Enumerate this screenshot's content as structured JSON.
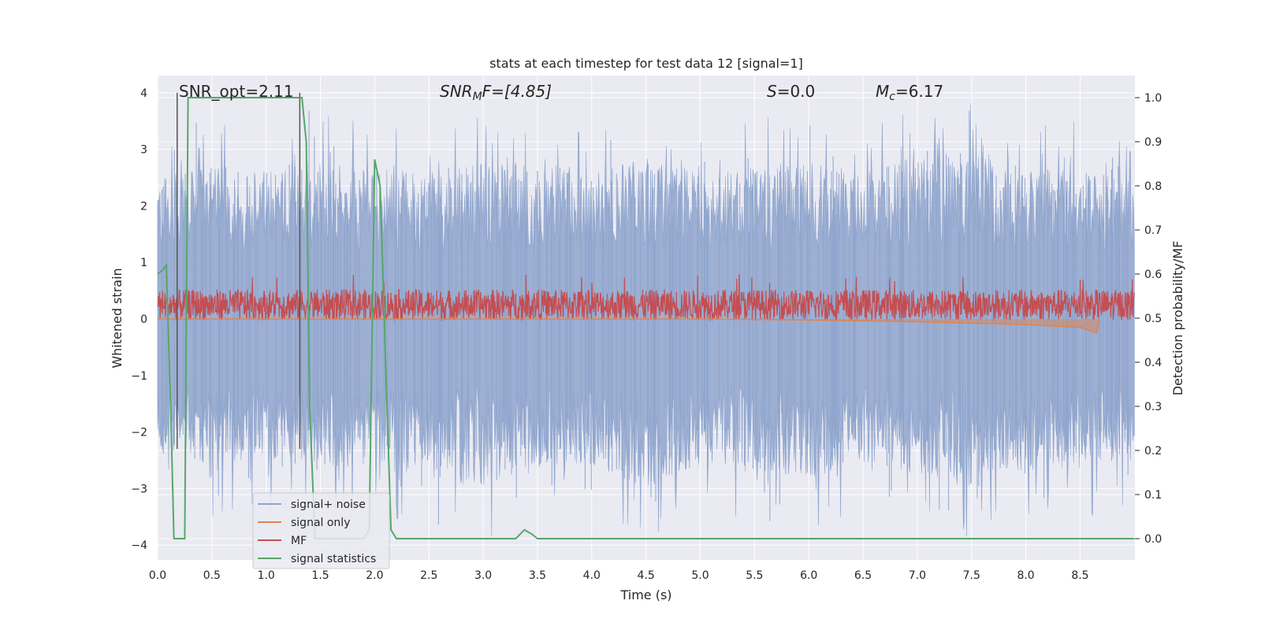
{
  "chart_data": {
    "type": "line",
    "title": "stats at each timestep for test data 12 [signal=1]",
    "xlabel": "Time (s)",
    "ylabel_left": "Whitened strain",
    "ylabel_right": "Detection probability/MF",
    "xlim": [
      0.0,
      9.0
    ],
    "ylim_left": [
      -4.2,
      4.4
    ],
    "ylim_right": [
      -0.05,
      1.05
    ],
    "grid": true,
    "x_ticks": [
      "0.0",
      "0.5",
      "1.0",
      "1.5",
      "2.0",
      "2.5",
      "3.0",
      "3.5",
      "4.0",
      "4.5",
      "5.0",
      "5.5",
      "6.0",
      "6.5",
      "7.0",
      "7.5",
      "8.0",
      "8.5"
    ],
    "y_ticks_left": [
      "4",
      "3",
      "2",
      "1",
      "0",
      "−1",
      "−2",
      "−3",
      "−4"
    ],
    "y_ticks_right": [
      "1.0",
      "0.9",
      "0.8",
      "0.7",
      "0.6",
      "0.5",
      "0.4",
      "0.3",
      "0.2",
      "0.1",
      "0.0"
    ],
    "annotations": {
      "snr_opt": "SNR_opt=2.11",
      "snr_mf_main": "SNR",
      "snr_mf_sub": "M",
      "snr_mf_tail": "F=[4.85]",
      "s_main": "S",
      "s_tail": "=0.0",
      "mc_main": "M",
      "mc_sub": "c",
      "mc_tail": "=6.17"
    },
    "legend": {
      "placement": "lower-left",
      "entries": [
        "signal+ noise",
        "signal only",
        "MF",
        "signal statistics"
      ]
    },
    "colors": {
      "background": "#eaeaf2",
      "grid": "#ffffff",
      "signal_noise": "#8fa5cd",
      "signal_only": "#dd8452",
      "mf": "#c44e52",
      "signal_stats": "#55a868",
      "vline": "#555555"
    },
    "series": [
      {
        "name": "signal+ noise",
        "axis": "left",
        "description_range": [
          -3.9,
          4.0
        ],
        "envelope_upper": [
          [
            0.0,
            2.5
          ],
          [
            0.5,
            2.7
          ],
          [
            1.0,
            2.6
          ],
          [
            1.5,
            2.8
          ],
          [
            2.0,
            2.7
          ],
          [
            2.5,
            2.6
          ],
          [
            3.0,
            2.8
          ],
          [
            3.5,
            2.7
          ],
          [
            4.0,
            2.6
          ],
          [
            4.5,
            2.9
          ],
          [
            5.0,
            2.6
          ],
          [
            5.5,
            2.7
          ],
          [
            6.0,
            2.8
          ],
          [
            6.5,
            2.6
          ],
          [
            7.0,
            2.9
          ],
          [
            7.5,
            3.0
          ],
          [
            8.0,
            2.7
          ],
          [
            8.5,
            2.6
          ],
          [
            9.0,
            2.5
          ]
        ],
        "envelope_lower": [
          [
            0.0,
            -2.4
          ],
          [
            0.5,
            -2.6
          ],
          [
            1.0,
            -2.5
          ],
          [
            1.5,
            -2.7
          ],
          [
            2.0,
            -2.6
          ],
          [
            2.5,
            -2.8
          ],
          [
            3.0,
            -3.0
          ],
          [
            3.5,
            -2.7
          ],
          [
            4.0,
            -2.6
          ],
          [
            4.5,
            -3.0
          ],
          [
            5.0,
            -2.6
          ],
          [
            5.5,
            -2.7
          ],
          [
            6.0,
            -2.8
          ],
          [
            6.5,
            -2.6
          ],
          [
            7.0,
            -2.7
          ],
          [
            7.5,
            -3.0
          ],
          [
            8.0,
            -2.7
          ],
          [
            8.5,
            -2.6
          ],
          [
            9.0,
            -2.5
          ]
        ]
      },
      {
        "name": "signal only",
        "axis": "left",
        "values": [
          [
            0.0,
            0.0
          ],
          [
            5.0,
            0.0
          ],
          [
            6.0,
            -0.02
          ],
          [
            7.0,
            -0.05
          ],
          [
            8.0,
            -0.1
          ],
          [
            8.5,
            -0.15
          ],
          [
            8.65,
            -0.25
          ],
          [
            8.68,
            0.0
          ]
        ]
      },
      {
        "name": "MF",
        "axis": "right",
        "center": 0.53,
        "range": [
          0.49,
          0.6
        ]
      },
      {
        "name": "signal statistics",
        "axis": "right",
        "values": [
          [
            0.0,
            0.6
          ],
          [
            0.05,
            0.61
          ],
          [
            0.08,
            0.62
          ],
          [
            0.12,
            0.3
          ],
          [
            0.15,
            0.0
          ],
          [
            0.18,
            0.0
          ],
          [
            0.2,
            0.0
          ],
          [
            0.25,
            0.0
          ],
          [
            0.28,
            1.0
          ],
          [
            1.3,
            1.0
          ],
          [
            1.33,
            1.0
          ],
          [
            1.37,
            0.9
          ],
          [
            1.4,
            0.3
          ],
          [
            1.45,
            0.0
          ],
          [
            1.9,
            0.0
          ],
          [
            1.95,
            0.02
          ],
          [
            2.0,
            0.86
          ],
          [
            2.05,
            0.8
          ],
          [
            2.1,
            0.4
          ],
          [
            2.15,
            0.02
          ],
          [
            2.2,
            0.0
          ],
          [
            3.3,
            0.0
          ],
          [
            3.38,
            0.02
          ],
          [
            3.45,
            0.01
          ],
          [
            3.5,
            0.0
          ],
          [
            9.0,
            0.0
          ]
        ]
      }
    ],
    "vlines": [
      0.18,
      1.31
    ]
  }
}
